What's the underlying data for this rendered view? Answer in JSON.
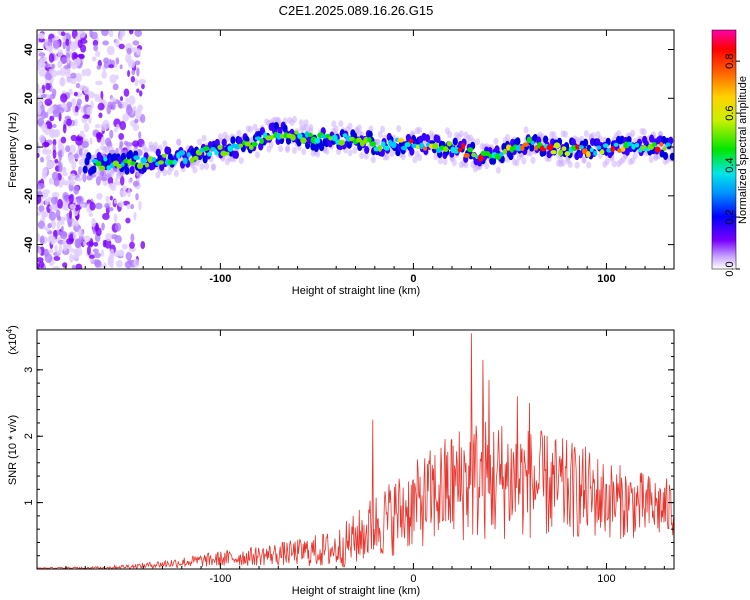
{
  "title": "C2E1.2025.089.16.26.G15",
  "chart_data": [
    {
      "type": "heatmap",
      "xlabel": "Height of straight line (km)",
      "ylabel": "Frequency (Hz)",
      "xlim": [
        -195,
        135
      ],
      "ylim": [
        -50,
        48
      ],
      "x_ticks": [
        -100,
        0,
        100
      ],
      "y_ticks": [
        -40,
        -20,
        0,
        20,
        40
      ],
      "colorbar": {
        "label": "Normalized spectral amplitude",
        "range": [
          0.0,
          0.92
        ],
        "ticks": [
          "0.0",
          "0.2",
          "0.4",
          "0.6",
          "0.8"
        ]
      },
      "ridge": [
        {
          "x": -170,
          "y": -7
        },
        {
          "x": -140,
          "y": -6
        },
        {
          "x": -110,
          "y": -3
        },
        {
          "x": -90,
          "y": 0
        },
        {
          "x": -70,
          "y": 6
        },
        {
          "x": -50,
          "y": 3
        },
        {
          "x": -30,
          "y": 4
        },
        {
          "x": -20,
          "y": 1
        },
        {
          "x": 0,
          "y": 1
        },
        {
          "x": 20,
          "y": 0
        },
        {
          "x": 40,
          "y": -4
        },
        {
          "x": 60,
          "y": 1
        },
        {
          "x": 80,
          "y": -1
        },
        {
          "x": 100,
          "y": -1
        },
        {
          "x": 120,
          "y": 1
        },
        {
          "x": 135,
          "y": -1
        }
      ]
    },
    {
      "type": "line",
      "xlabel": "Height of straight line (km)",
      "ylabel": "SNR (10 * v/v)",
      "yscale_label": "(x10",
      "yscale_exp": "4",
      "xlim": [
        -195,
        135
      ],
      "ylim": [
        0,
        3.6
      ],
      "x_ticks": [
        -100,
        0,
        100
      ],
      "y_ticks": [
        1,
        2,
        3
      ],
      "series": [
        {
          "color": "#e8342c",
          "envelope_x": [
            -195,
            -160,
            -140,
            -120,
            -100,
            -80,
            -60,
            -40,
            -30,
            -20,
            -10,
            0,
            10,
            20,
            30,
            40,
            50,
            60,
            70,
            80,
            90,
            100,
            110,
            120,
            135
          ],
          "envelope_mean": [
            0.01,
            0.02,
            0.05,
            0.1,
            0.15,
            0.2,
            0.25,
            0.3,
            0.45,
            0.65,
            0.8,
            0.95,
            1.1,
            1.25,
            1.35,
            1.35,
            1.35,
            1.3,
            1.25,
            1.2,
            1.15,
            1.05,
            1.0,
            0.95,
            0.9
          ],
          "envelope_spread": [
            0.01,
            0.02,
            0.04,
            0.08,
            0.12,
            0.15,
            0.2,
            0.3,
            0.4,
            0.5,
            0.6,
            0.65,
            0.75,
            0.85,
            0.95,
            0.95,
            0.9,
            0.85,
            0.8,
            0.75,
            0.7,
            0.6,
            0.55,
            0.5,
            0.45
          ],
          "peaks": [
            {
              "x": 30,
              "y": 3.55
            },
            {
              "x": 36,
              "y": 3.15
            },
            {
              "x": 39,
              "y": 2.85
            },
            {
              "x": -21,
              "y": 2.25
            },
            {
              "x": 54,
              "y": 2.6
            },
            {
              "x": 60,
              "y": 2.5
            }
          ]
        }
      ]
    }
  ]
}
